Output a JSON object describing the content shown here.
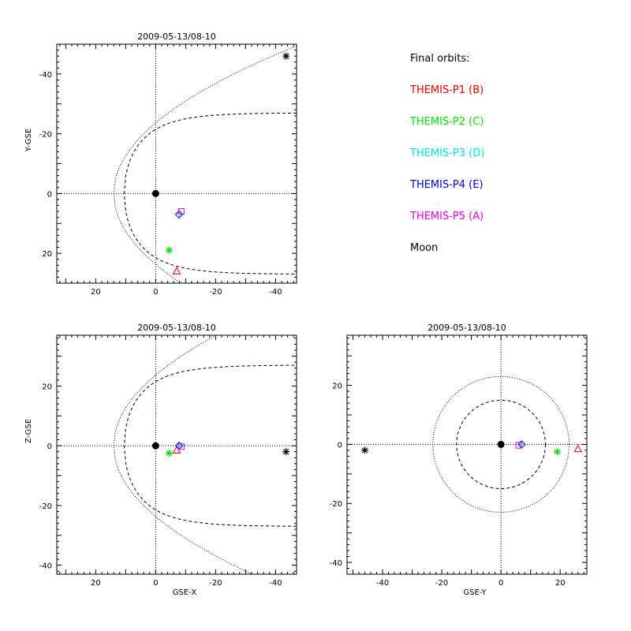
{
  "legend": {
    "title": "Final orbits:",
    "items": [
      {
        "label": "THEMIS-P1 (B)",
        "color": "#e00000",
        "marker": "triangle"
      },
      {
        "label": "THEMIS-P2 (C)",
        "color": "#00e000",
        "marker": "asterisk"
      },
      {
        "label": "THEMIS-P3 (D)",
        "color": "#00e5e5",
        "marker": "plus"
      },
      {
        "label": "THEMIS-P4 (E)",
        "color": "#0000cc",
        "marker": "diamond"
      },
      {
        "label": "THEMIS-P5 (A)",
        "color": "#e000e0",
        "marker": "square"
      },
      {
        "label": "Moon",
        "color": "#000000",
        "marker": "asterisk"
      }
    ]
  },
  "chart_data": [
    {
      "type": "scatter",
      "title": "2009-05-13/08-10",
      "xlabel": "",
      "ylabel": "Y-GSE",
      "xlim": [
        33,
        -47
      ],
      "ylim": [
        30,
        -50
      ],
      "xticks": [
        20,
        0,
        -20,
        -40
      ],
      "yticks": [
        -40,
        -20,
        0,
        20
      ],
      "points": [
        {
          "name": "Earth",
          "x": 0,
          "y": 0,
          "marker": "dot",
          "color": "#000000"
        },
        {
          "name": "THEMIS-P1 (B)",
          "x": -7,
          "y": 26,
          "marker": "triangle",
          "color": "#e00000"
        },
        {
          "name": "THEMIS-P2 (C)",
          "x": -4.5,
          "y": 19,
          "marker": "asterisk",
          "color": "#00e000"
        },
        {
          "name": "THEMIS-P3 (D)",
          "x": -8,
          "y": 6.5,
          "marker": "plus",
          "color": "#00e5e5"
        },
        {
          "name": "THEMIS-P4 (E)",
          "x": -7.8,
          "y": 7,
          "marker": "diamond",
          "color": "#0000cc"
        },
        {
          "name": "THEMIS-P5 (A)",
          "x": -8.5,
          "y": 6,
          "marker": "square",
          "color": "#e000e0"
        },
        {
          "name": "Moon",
          "x": -43.5,
          "y": -46,
          "marker": "asterisk",
          "color": "#000000"
        }
      ],
      "boundaries": [
        {
          "name": "bow-shock",
          "style": "dotted",
          "nose": 14,
          "flare": 20,
          "xmin": -47
        },
        {
          "name": "magnetopause",
          "style": "dashed",
          "nose": 10.5,
          "flare": 16.8,
          "asym": 27,
          "xmin": -47
        }
      ]
    },
    {
      "type": "scatter",
      "title": "2009-05-13/08-10",
      "xlabel": "GSE-X",
      "ylabel": "Z-GSE",
      "xlim": [
        33,
        -47
      ],
      "ylim": [
        -43,
        37
      ],
      "xticks": [
        20,
        0,
        -20,
        -40
      ],
      "yticks": [
        20,
        0,
        -20,
        -40
      ],
      "points": [
        {
          "name": "Earth",
          "x": 0,
          "y": 0,
          "marker": "dot",
          "color": "#000000"
        },
        {
          "name": "THEMIS-P1 (B)",
          "x": -7,
          "y": -1.5,
          "marker": "triangle",
          "color": "#e00000"
        },
        {
          "name": "THEMIS-P2 (C)",
          "x": -4.5,
          "y": -2.5,
          "marker": "asterisk",
          "color": "#00e000"
        },
        {
          "name": "THEMIS-P3 (D)",
          "x": -8,
          "y": 0,
          "marker": "plus",
          "color": "#00e5e5"
        },
        {
          "name": "THEMIS-P4 (E)",
          "x": -7.8,
          "y": 0,
          "marker": "diamond",
          "color": "#0000cc"
        },
        {
          "name": "THEMIS-P5 (A)",
          "x": -8.5,
          "y": -0.3,
          "marker": "square",
          "color": "#e000e0"
        },
        {
          "name": "Moon",
          "x": -43.5,
          "y": -2,
          "marker": "asterisk",
          "color": "#000000"
        }
      ],
      "boundaries": [
        {
          "name": "bow-shock",
          "style": "dotted",
          "nose": 14,
          "flare": 20,
          "xmin": -47
        },
        {
          "name": "magnetopause",
          "style": "dashed",
          "nose": 10.5,
          "flare": 16.8,
          "asym": 27,
          "xmin": -47
        }
      ]
    },
    {
      "type": "scatter",
      "title": "2009-05-13/08-10",
      "xlabel": "GSE-Y",
      "ylabel": "",
      "xlim": [
        -52,
        29
      ],
      "ylim": [
        -44,
        37
      ],
      "xticks": [
        -40,
        -20,
        0,
        20
      ],
      "yticks": [
        20,
        0,
        -20,
        -40
      ],
      "points": [
        {
          "name": "Earth",
          "x": 0,
          "y": 0,
          "marker": "dot",
          "color": "#000000"
        },
        {
          "name": "THEMIS-P1 (B)",
          "x": 26,
          "y": -1.5,
          "marker": "triangle",
          "color": "#e00000"
        },
        {
          "name": "THEMIS-P2 (C)",
          "x": 19,
          "y": -2.5,
          "marker": "asterisk",
          "color": "#00e000"
        },
        {
          "name": "THEMIS-P3 (D)",
          "x": 6.5,
          "y": 0,
          "marker": "plus",
          "color": "#00e5e5"
        },
        {
          "name": "THEMIS-P4 (E)",
          "x": 7,
          "y": 0,
          "marker": "diamond",
          "color": "#0000cc"
        },
        {
          "name": "THEMIS-P5 (A)",
          "x": 6,
          "y": -0.3,
          "marker": "square",
          "color": "#e000e0"
        },
        {
          "name": "Moon",
          "x": -46,
          "y": -2,
          "marker": "asterisk",
          "color": "#000000"
        }
      ],
      "circles": [
        {
          "name": "bow-shock-cross-section",
          "style": "dotted",
          "r": 23
        },
        {
          "name": "magnetopause-cross-section",
          "style": "dashed",
          "r": 15
        }
      ]
    }
  ]
}
